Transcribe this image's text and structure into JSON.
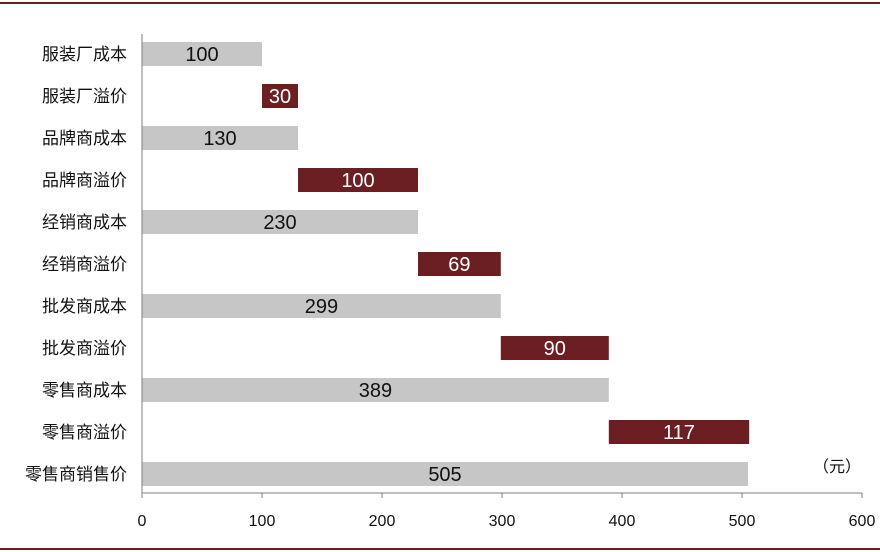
{
  "colors": {
    "cost_bar": "#c6c6c6",
    "premium_bar": "#6b1f23",
    "rule": "#6b1f23",
    "axis": "#7f7f7f"
  },
  "chart_data": {
    "type": "bar",
    "orientation": "horizontal",
    "subtype": "waterfall",
    "unit_label": "（元）",
    "xlim": [
      0,
      600
    ],
    "xticks": [
      "0",
      "100",
      "200",
      "300",
      "400",
      "500",
      "600"
    ],
    "bars": [
      {
        "category": "服装厂成本",
        "kind": "cost",
        "start": 0,
        "value": 100,
        "label": "100"
      },
      {
        "category": "服装厂溢价",
        "kind": "premium",
        "start": 100,
        "value": 30,
        "label": "30"
      },
      {
        "category": "品牌商成本",
        "kind": "cost",
        "start": 0,
        "value": 130,
        "label": "130"
      },
      {
        "category": "品牌商溢价",
        "kind": "premium",
        "start": 130,
        "value": 100,
        "label": "100"
      },
      {
        "category": "经销商成本",
        "kind": "cost",
        "start": 0,
        "value": 230,
        "label": "230"
      },
      {
        "category": "经销商溢价",
        "kind": "premium",
        "start": 230,
        "value": 69,
        "label": "69"
      },
      {
        "category": "批发商成本",
        "kind": "cost",
        "start": 0,
        "value": 299,
        "label": "299"
      },
      {
        "category": "批发商溢价",
        "kind": "premium",
        "start": 299,
        "value": 90,
        "label": "90"
      },
      {
        "category": "零售商成本",
        "kind": "cost",
        "start": 0,
        "value": 389,
        "label": "389"
      },
      {
        "category": "零售商溢价",
        "kind": "premium",
        "start": 389,
        "value": 117,
        "label": "117"
      },
      {
        "category": "零售商销售价",
        "kind": "cost",
        "start": 0,
        "value": 505,
        "label": "505"
      }
    ]
  }
}
